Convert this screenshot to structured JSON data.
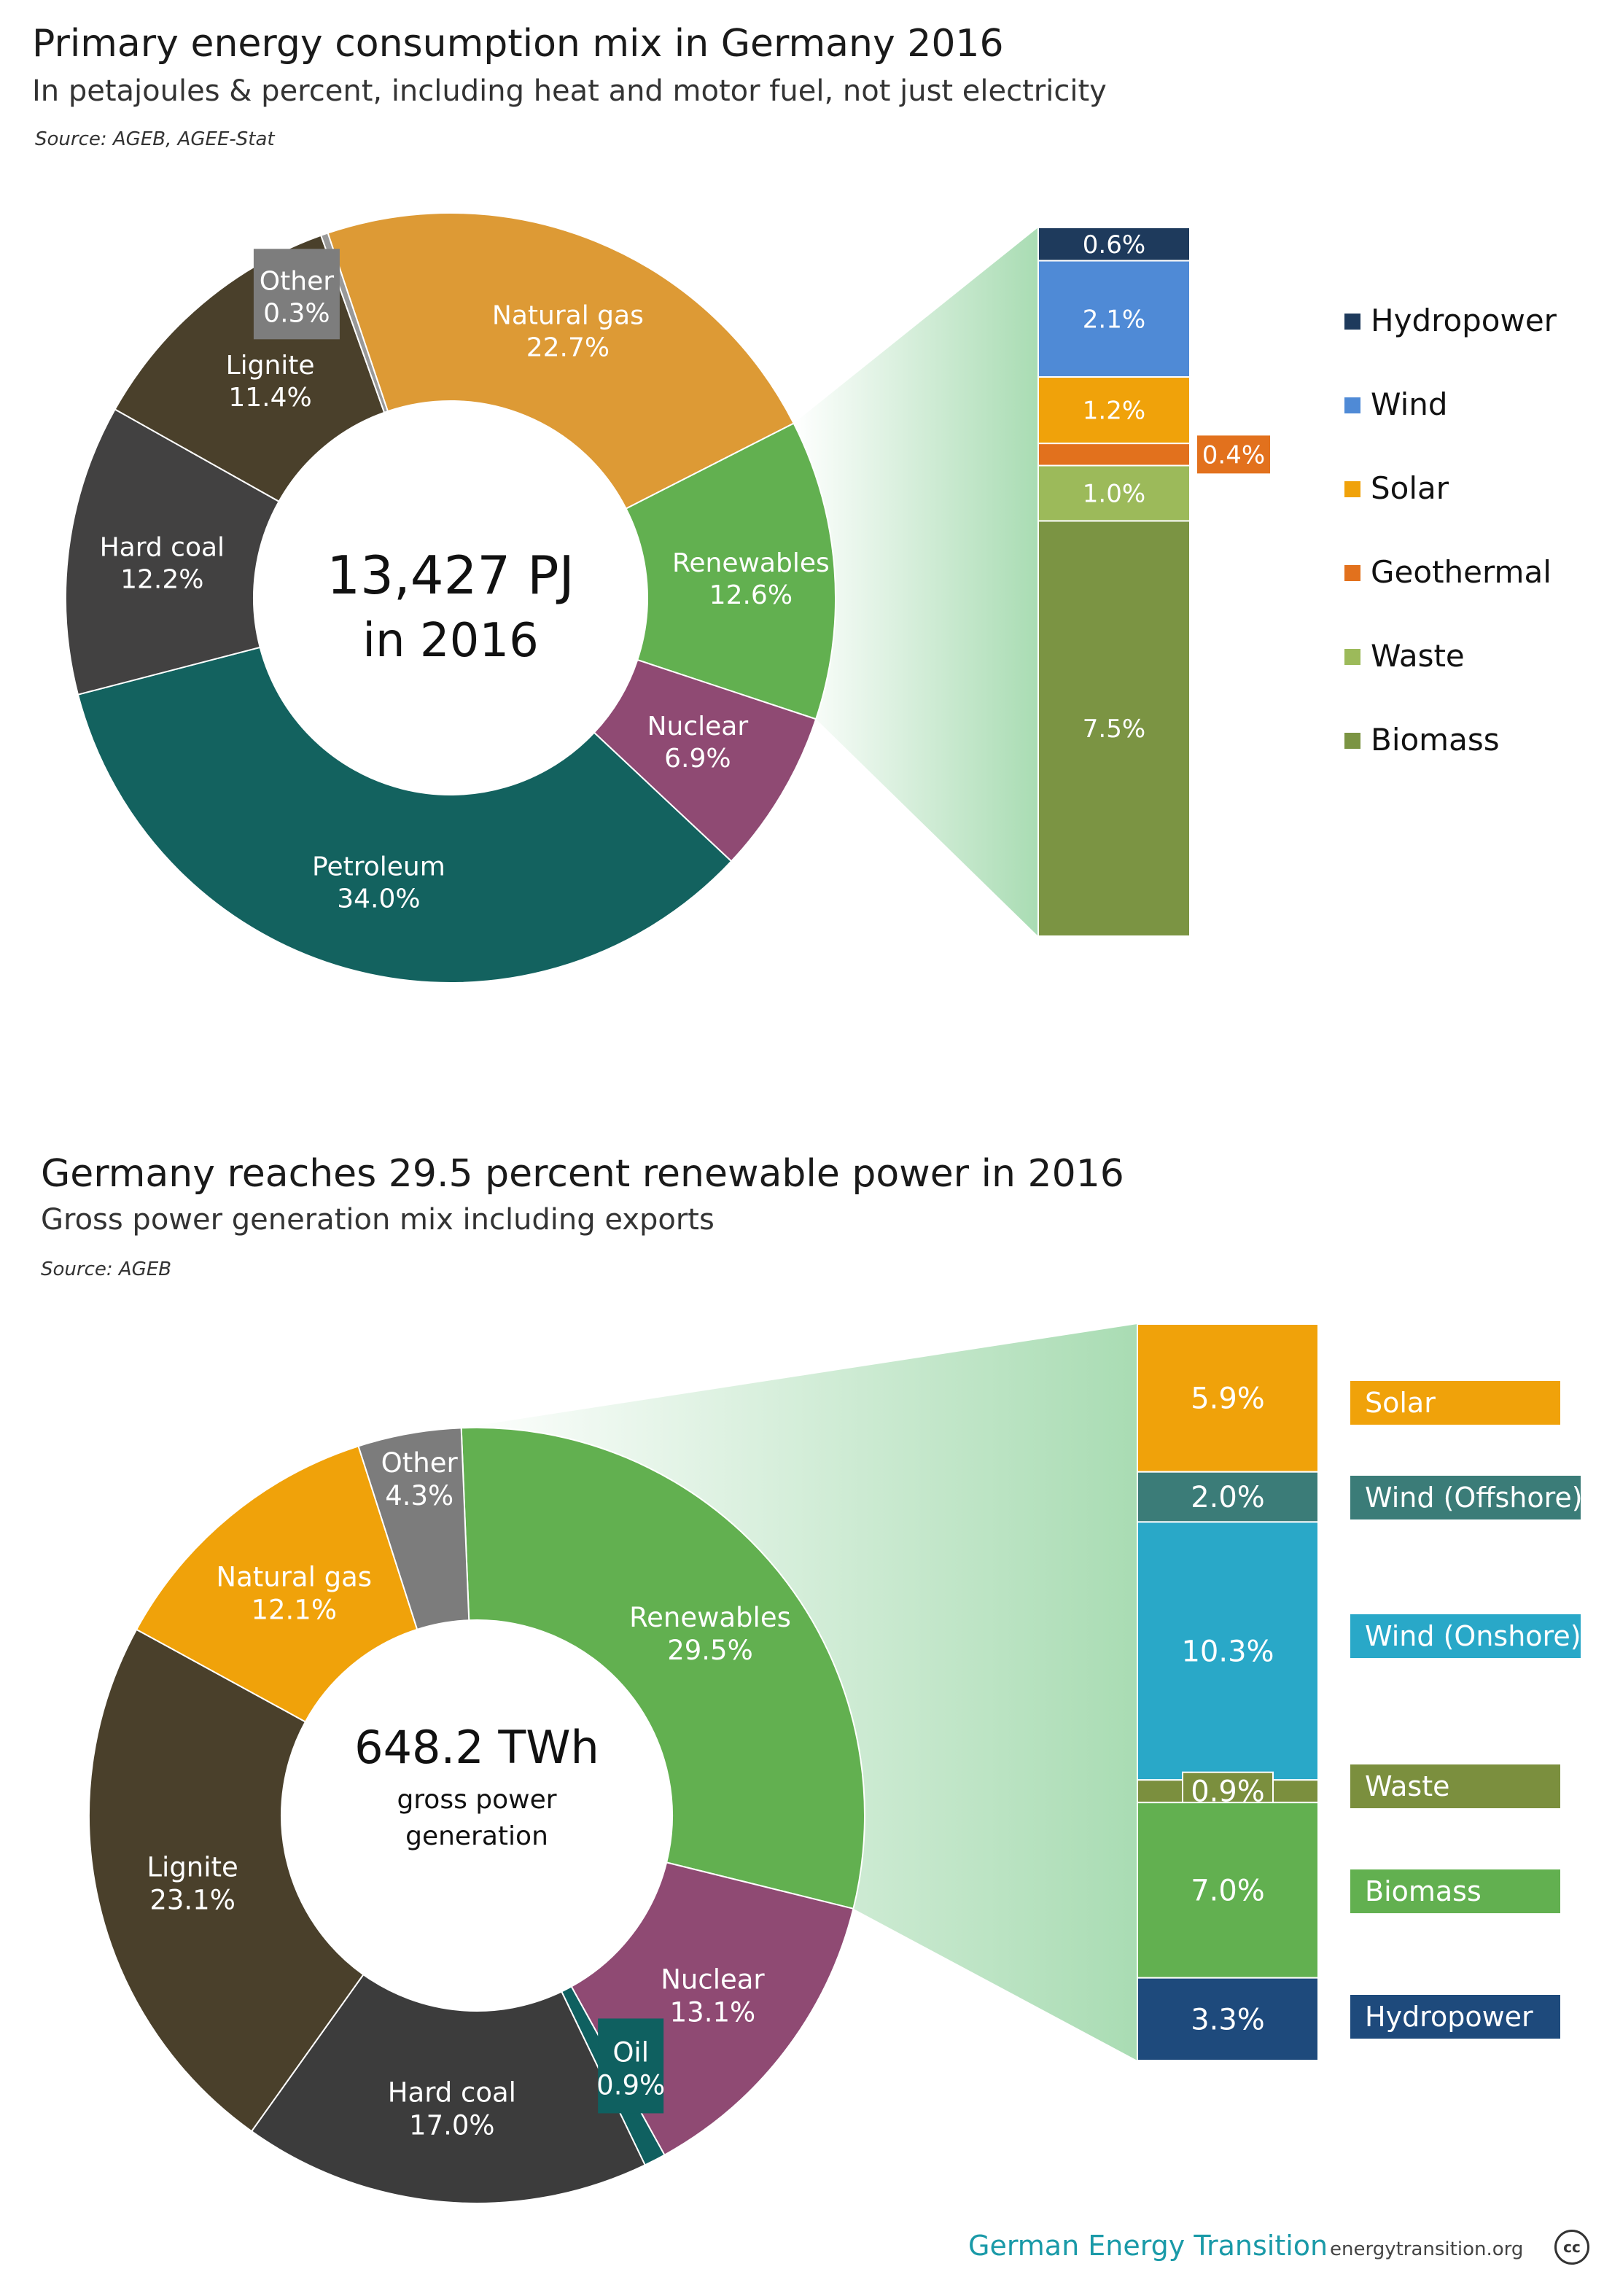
{
  "footer": {
    "brand": "German Energy Transition",
    "url": "energytransition.org",
    "license_badge": "cc"
  },
  "chart_data": [
    {
      "type": "pie",
      "title": "Primary energy consumption mix in Germany 2016",
      "subtitle": "In petajoules & percent, including heat and motor fuel, not just electricity",
      "source": "Source: AGEB, AGEE-Stat",
      "center_value": "13,427 PJ",
      "center_caption": "in 2016",
      "slices": [
        {
          "name": "Natural gas",
          "label": "22.7%",
          "value": 22.7,
          "color": "#dd9a35"
        },
        {
          "name": "Renewables",
          "label": "12.6%",
          "value": 12.6,
          "color": "#62b050",
          "highlight": true
        },
        {
          "name": "Nuclear",
          "label": "6.9%",
          "value": 6.9,
          "color": "#8f4a73"
        },
        {
          "name": "Petroleum",
          "label": "34.0%",
          "value": 34.0,
          "color": "#13625f"
        },
        {
          "name": "Hard coal",
          "label": "12.2%",
          "value": 12.2,
          "color": "#424141"
        },
        {
          "name": "Lignite",
          "label": "11.4%",
          "value": 11.4,
          "color": "#4a402b"
        },
        {
          "name": "Other",
          "label": "0.3%",
          "value": 0.3,
          "color": "#999999"
        }
      ],
      "breakdown": {
        "segments": [
          {
            "name": "Hydropower",
            "label": "0.6%",
            "value": 0.6,
            "color": "#1e3a5c"
          },
          {
            "name": "Wind",
            "label": "2.1%",
            "value": 2.1,
            "color": "#4f8ad6"
          },
          {
            "name": "Solar",
            "label": "1.2%",
            "value": 1.2,
            "color": "#f0a20a"
          },
          {
            "name": "Geothermal",
            "label": "0.4%",
            "value": 0.4,
            "color": "#e2711d"
          },
          {
            "name": "Waste",
            "label": "1.0%",
            "value": 1.0,
            "color": "#9cba5a"
          },
          {
            "name": "Biomass",
            "label": "7.5%",
            "value": 7.5,
            "color": "#7b9443"
          }
        ]
      }
    },
    {
      "type": "pie",
      "title": "Germany reaches 29.5 percent renewable power in 2016",
      "subtitle": "Gross power generation mix including exports",
      "source": "Source: AGEB",
      "center_value": "648.2 TWh",
      "center_caption": "gross power generation",
      "slices": [
        {
          "name": "Renewables",
          "label": "29.5%",
          "value": 29.5,
          "color": "#62b050",
          "highlight": true
        },
        {
          "name": "Nuclear",
          "label": "13.1%",
          "value": 13.1,
          "color": "#8f4a73"
        },
        {
          "name": "Oil",
          "label": "0.9%",
          "value": 0.9,
          "color": "#0f6060"
        },
        {
          "name": "Hard coal",
          "label": "17.0%",
          "value": 17.0,
          "color": "#3c3c3c"
        },
        {
          "name": "Lignite",
          "label": "23.1%",
          "value": 23.1,
          "color": "#4a402b"
        },
        {
          "name": "Natural gas",
          "label": "12.1%",
          "value": 12.1,
          "color": "#f0a20a"
        },
        {
          "name": "Other",
          "label": "4.3%",
          "value": 4.3,
          "color": "#7c7c7c"
        }
      ],
      "breakdown": {
        "segments": [
          {
            "name": "Solar",
            "label": "5.9%",
            "value": 5.9,
            "color": "#f0a20a"
          },
          {
            "name": "Wind (Offshore)",
            "label": "2.0%",
            "value": 2.0,
            "color": "#3b7c78"
          },
          {
            "name": "Wind (Onshore)",
            "label": "10.3%",
            "value": 10.3,
            "color": "#29a8c8"
          },
          {
            "name": "Waste",
            "label": "0.9%",
            "value": 0.9,
            "color": "#7b8f3e"
          },
          {
            "name": "Biomass",
            "label": "7.0%",
            "value": 7.0,
            "color": "#62b050"
          },
          {
            "name": "Hydropower",
            "label": "3.3%",
            "value": 3.3,
            "color": "#1e4a7c"
          }
        ]
      }
    }
  ]
}
